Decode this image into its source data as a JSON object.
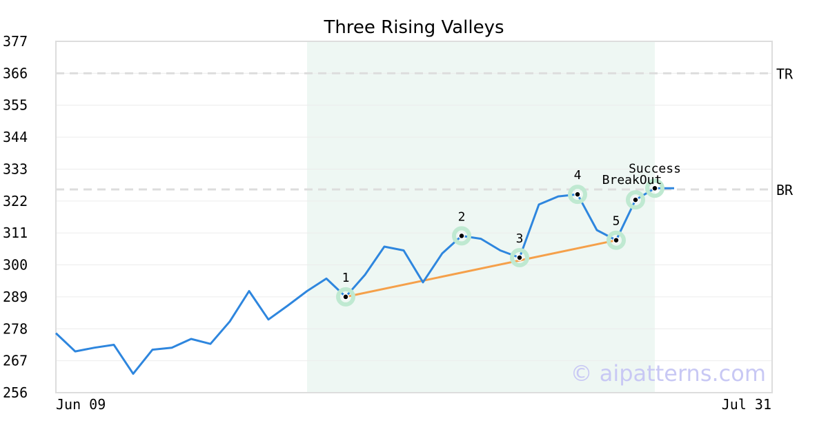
{
  "chart_data": {
    "type": "line",
    "title": "Three Rising Valleys",
    "xlabel": "",
    "ylabel": "",
    "ylim": [
      256,
      377
    ],
    "yticks": [
      256,
      267,
      278,
      289,
      300,
      311,
      322,
      333,
      344,
      355,
      366,
      377
    ],
    "x_tick_labels": [
      "Jun 09",
      "Jul 31"
    ],
    "grid": true,
    "series": [
      {
        "values": [
          276.5,
          270.2,
          271.5,
          272.5,
          262.5,
          270.8,
          271.5,
          274.5,
          272.8,
          280.5,
          291.0,
          281.2,
          286.0,
          291.0,
          295.3,
          289.0,
          296.6,
          306.3,
          305.0,
          294.0,
          304.0,
          310.0,
          309.0,
          305.0,
          302.5,
          320.8,
          323.6,
          324.3,
          312.0,
          308.5,
          322.4,
          326.4,
          326.4
        ]
      }
    ],
    "highlight_region": {
      "start_index": 13,
      "end_index": 31,
      "color": "#eef7f3"
    },
    "trend_line": {
      "from_index": 15,
      "from_value": 289.0,
      "to_index": 29,
      "to_value": 308.5,
      "color": "#f5a04a"
    },
    "levels": [
      {
        "label": "TR",
        "value": 366
      },
      {
        "label": "BR",
        "value": 326
      }
    ],
    "points": [
      {
        "label": "1",
        "index": 15,
        "value": 289.0
      },
      {
        "label": "2",
        "index": 21,
        "value": 310.0
      },
      {
        "label": "3",
        "index": 24,
        "value": 302.5
      },
      {
        "label": "4",
        "index": 27,
        "value": 324.3
      },
      {
        "label": "5",
        "index": 29,
        "value": 308.5
      },
      {
        "label": "BreakOut",
        "index": 30,
        "value": 322.4
      },
      {
        "label": "Success",
        "index": 31,
        "value": 326.4
      }
    ],
    "watermark": "© aipatterns.com",
    "colors": {
      "line": "#2e86de",
      "marker_halo": "#bfe9d1",
      "level": "#dddddd",
      "grid": "#ececec",
      "frame": "#dddddd"
    }
  }
}
